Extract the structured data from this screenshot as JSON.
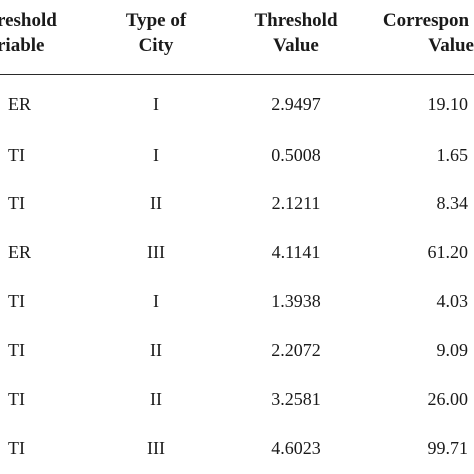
{
  "table": {
    "headers": {
      "var_line1": "reshold",
      "var_line2": "riable",
      "type_line1": "Type of",
      "type_line2": "City",
      "thr_line1": "Threshold",
      "thr_line2": "Value",
      "corr_line1": "Correspon",
      "corr_line2": "Value"
    },
    "rows": [
      {
        "variable": "ER",
        "city_type": "I",
        "threshold": "2.9497",
        "corresponding": "19.10"
      },
      {
        "variable": "TI",
        "city_type": "I",
        "threshold": "0.5008",
        "corresponding": "1.65"
      },
      {
        "variable": "TI",
        "city_type": "II",
        "threshold": "2.1211",
        "corresponding": "8.34"
      },
      {
        "variable": "ER",
        "city_type": "III",
        "threshold": "4.1141",
        "corresponding": "61.20"
      },
      {
        "variable": "TI",
        "city_type": "I",
        "threshold": "1.3938",
        "corresponding": "4.03"
      },
      {
        "variable": "TI",
        "city_type": "II",
        "threshold": "2.2072",
        "corresponding": "9.09"
      },
      {
        "variable": "TI",
        "city_type": "II",
        "threshold": "3.2581",
        "corresponding": "26.00"
      },
      {
        "variable": "TI",
        "city_type": "III",
        "threshold": "4.6023",
        "corresponding": "99.71"
      }
    ]
  }
}
